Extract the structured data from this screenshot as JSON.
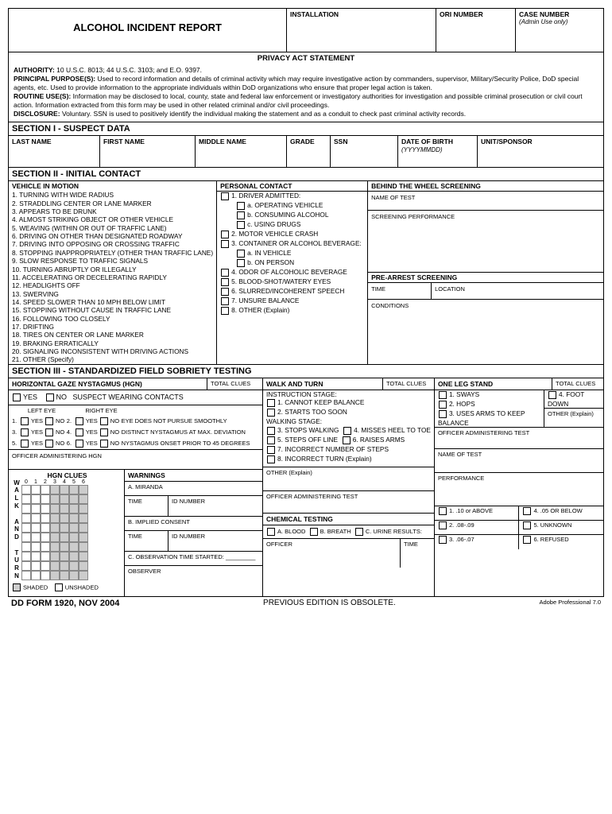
{
  "header": {
    "title": "ALCOHOL INCIDENT REPORT",
    "installation": "INSTALLATION",
    "ori_number": "ORI NUMBER",
    "case_number": "CASE NUMBER",
    "case_number_note": "(Admin Use only)"
  },
  "privacy": {
    "heading": "PRIVACY ACT STATEMENT",
    "authority_lbl": "AUTHORITY:",
    "authority": "10 U.S.C. 8013; 44 U.S.C. 3103; and E.O. 9397.",
    "purpose_lbl": "PRINCIPAL PURPOSE(S):",
    "purpose": "Used to record information and details of criminal activity which may require investigative action by commanders, supervisor, Military/Security Police, DoD special agents, etc.  Used to provide information to the appropriate individuals within DoD organizations who ensure that proper legal action is taken.",
    "routine_lbl": "ROUTINE USE(S):",
    "routine": "Information may be disclosed to local, county, state and federal law enforcement or investigatory authorities for investigation and possible criminal prosecution or civil court action.  Information extracted from this form may be used in other related criminal and/or civil proceedings.",
    "disclosure_lbl": "DISCLOSURE:",
    "disclosure": "Voluntary.  SSN is used to positively identify the individual making the statement and as a conduit to check past criminal activity records."
  },
  "section1": {
    "heading": "SECTION I - SUSPECT DATA",
    "last_name": "LAST NAME",
    "first_name": "FIRST NAME",
    "middle_name": "MIDDLE NAME",
    "grade": "GRADE",
    "ssn": "SSN",
    "dob": "DATE OF BIRTH",
    "dob_fmt": "(YYYYMMDD)",
    "unit": "UNIT/SPONSOR"
  },
  "section2": {
    "heading": "SECTION II - INITIAL CONTACT",
    "vehicle_hdr": "VEHICLE IN MOTION",
    "vehicle_items": [
      "1.  TURNING WITH WIDE RADIUS",
      "2.  STRADDLING CENTER OR LANE MARKER",
      "3.  APPEARS TO BE DRUNK",
      "4.  ALMOST STRIKING OBJECT OR OTHER VEHICLE",
      "5.  WEAVING (WITHIN OR OUT OF TRAFFIC LANE)",
      "6.  DRIVING ON OTHER THAN DESIGNATED ROADWAY",
      "7.  DRIVING INTO OPPOSING OR CROSSING TRAFFIC",
      "8.  STOPPING INAPPROPRIATELY (OTHER THAN TRAFFIC LANE)",
      "9.  SLOW RESPONSE TO TRAFFIC SIGNALS",
      "10.  TURNING ABRUPTLY OR ILLEGALLY",
      "11.  ACCELERATING OR DECELERATING RAPIDLY",
      "12.  HEADLIGHTS OFF",
      "13.  SWERVING",
      "14.  SPEED SLOWER THAN 10 MPH BELOW LIMIT",
      "15.  STOPPING WITHOUT CAUSE IN TRAFFIC LANE",
      "16.  FOLLOWING TOO CLOSELY",
      "17.  DRIFTING",
      "18.  TIRES ON CENTER OR LANE MARKER",
      "19.  BRAKING ERRATICALLY",
      "20.  SIGNALING INCONSISTENT WITH DRIVING ACTIONS",
      "21.  OTHER (Specify)"
    ],
    "personal_hdr": "PERSONAL CONTACT",
    "p1": "1.  DRIVER ADMITTED:",
    "p1a": "a. OPERATING VEHICLE",
    "p1b": "b. CONSUMING ALCOHOL",
    "p1c": "c. USING DRUGS",
    "p2": "2.  MOTOR VEHICLE CRASH",
    "p3": "3.  CONTAINER OR ALCOHOL BEVERAGE:",
    "p3a": "a. IN VEHICLE",
    "p3b": "b. ON PERSON",
    "p4": "4.  ODOR OF ALCOHOLIC BEVERAGE",
    "p5": "5.  BLOOD-SHOT/WATERY EYES",
    "p6": "6.  SLURRED/INCOHERENT SPEECH",
    "p7": "7.  UNSURE BALANCE",
    "p8": "8.  OTHER (Explain)",
    "behind_hdr": "BEHIND THE WHEEL SCREENING",
    "name_of_test": "NAME OF TEST",
    "screening_perf": "SCREENING PERFORMANCE",
    "prearrest_hdr": "PRE-ARREST SCREENING",
    "time": "TIME",
    "location": "LOCATION",
    "conditions": "CONDITIONS"
  },
  "section3": {
    "heading": "SECTION III - STANDARDIZED FIELD SOBRIETY TESTING",
    "hgn_hdr": "HORIZONTAL GAZE NYSTAGMUS (HGN)",
    "total_clues": "TOTAL CLUES",
    "yes": "YES",
    "no": "NO",
    "suspect_contacts": "SUSPECT WEARING CONTACTS",
    "left_eye": "LEFT EYE",
    "right_eye": "RIGHT EYE",
    "pursue": "EYE DOES NOT PURSUE SMOOTHLY",
    "distinct": "DISTINCT NYSTAGMUS AT MAX. DEVIATION",
    "onset45": "NYSTAGMUS ONSET PRIOR TO 45 DEGREES",
    "officer_hgn": "OFFICER ADMINISTERING HGN",
    "hgn_clues_hdr": "HGN CLUES",
    "walk_turn_hdr": "WALK AND TURN",
    "instr_stage": "INSTRUCTION STAGE:",
    "w1": "1.  CANNOT KEEP BALANCE",
    "w2": "2.  STARTS TOO SOON",
    "walk_stage": "WALKING STAGE:",
    "w3": "3.  STOPS WALKING",
    "w4": "4.  MISSES HEEL TO TOE",
    "w5": "5.  STEPS OFF LINE",
    "w6": "6.  RAISES ARMS",
    "w7": "7.  INCORRECT NUMBER OF STEPS",
    "w8": "8.  INCORRECT TURN (Explain)",
    "other_explain": "OTHER (Explain)",
    "officer_test": "OFFICER ADMINISTERING TEST",
    "one_leg_hdr": "ONE LEG STAND",
    "ols1": "1.  SWAYS",
    "ols2": "2.  HOPS",
    "ols3": "3.  USES ARMS TO KEEP BALANCE",
    "ols4": "4.  FOOT DOWN",
    "ols_other": "OTHER (Explain)",
    "name_of_test": "NAME OF TEST",
    "performance": "PERFORMANCE",
    "warnings": "WARNINGS",
    "miranda": "A. MIRANDA",
    "implied": "B. IMPLIED CONSENT",
    "obs_time": "C. OBSERVATION TIME STARTED:",
    "time": "TIME",
    "id_number": "ID NUMBER",
    "observer": "OBSERVER",
    "shaded": "SHADED",
    "unshaded": "UNSHADED",
    "chemical_hdr": "CHEMICAL TESTING",
    "blood": "A.  BLOOD",
    "breath": "B. BREATH",
    "urine": "C.  URINE  RESULTS:",
    "officer": "OFFICER",
    "r1": "1.  .10 or ABOVE",
    "r2": "2.  .08-.09",
    "r3": "3.  .06-.07",
    "r4": "4.  .05 OR BELOW",
    "r5": "5.  UNKNOWN",
    "r6": "6.  REFUSED",
    "walk_label": "WALK",
    "and_label": "AND",
    "turn_label": "TURN",
    "grid_cols": [
      "0",
      "1",
      "2",
      "3",
      "4",
      "5",
      "6"
    ],
    "grid_rows": [
      "0",
      "1",
      "2",
      "3",
      "4",
      "5",
      "6",
      "7",
      "8",
      "9"
    ]
  },
  "footer": {
    "form": "DD FORM 1920, NOV 2004",
    "prev": "PREVIOUS EDITION IS OBSOLETE.",
    "adobe": "Adobe Professional 7.0"
  },
  "colors": {
    "border": "#000000",
    "shaded": "#cccccc",
    "bg": "#ffffff"
  }
}
